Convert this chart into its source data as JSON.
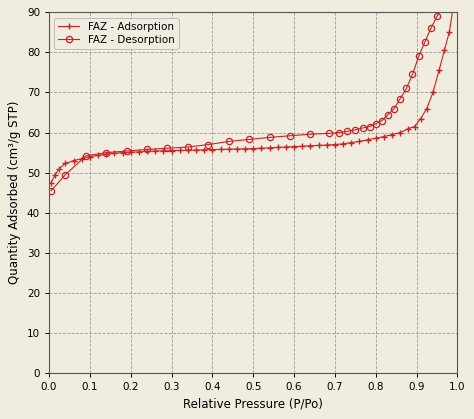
{
  "title": "",
  "xlabel": "Relative Pressure (P/Po)",
  "ylabel": "Quantity Adsorbed (cm³/g STP)",
  "xlim": [
    0.0,
    1.0
  ],
  "ylim": [
    0,
    90
  ],
  "yticks": [
    0,
    10,
    20,
    30,
    40,
    50,
    60,
    70,
    80,
    90
  ],
  "xticks": [
    0.0,
    0.1,
    0.2,
    0.3,
    0.4,
    0.5,
    0.6,
    0.7,
    0.8,
    0.9,
    1.0
  ],
  "line_color": "#cc2222",
  "background_color": "#f0ece0",
  "legend_labels": [
    "FAZ - Adsorption",
    "FAZ - Desorption"
  ],
  "adsorption_x": [
    0.005,
    0.015,
    0.025,
    0.04,
    0.06,
    0.08,
    0.1,
    0.12,
    0.14,
    0.16,
    0.18,
    0.2,
    0.22,
    0.24,
    0.26,
    0.28,
    0.3,
    0.32,
    0.34,
    0.36,
    0.38,
    0.4,
    0.42,
    0.44,
    0.46,
    0.48,
    0.5,
    0.52,
    0.54,
    0.56,
    0.58,
    0.6,
    0.62,
    0.64,
    0.66,
    0.68,
    0.7,
    0.72,
    0.74,
    0.76,
    0.78,
    0.8,
    0.82,
    0.84,
    0.86,
    0.88,
    0.895,
    0.91,
    0.925,
    0.94,
    0.955,
    0.968,
    0.98,
    0.99
  ],
  "adsorption_y": [
    47.5,
    49.5,
    51.0,
    52.3,
    53.0,
    53.5,
    54.0,
    54.3,
    54.6,
    54.8,
    55.0,
    55.1,
    55.2,
    55.3,
    55.4,
    55.45,
    55.5,
    55.55,
    55.6,
    55.65,
    55.7,
    55.75,
    55.8,
    55.85,
    55.9,
    55.95,
    56.0,
    56.1,
    56.2,
    56.3,
    56.4,
    56.5,
    56.6,
    56.7,
    56.8,
    56.9,
    57.0,
    57.2,
    57.5,
    57.8,
    58.2,
    58.6,
    59.0,
    59.5,
    60.0,
    61.0,
    61.5,
    63.5,
    66.0,
    70.0,
    75.5,
    80.5,
    85.0,
    91.5
  ],
  "desorption_x": [
    0.005,
    0.04,
    0.09,
    0.14,
    0.19,
    0.24,
    0.29,
    0.34,
    0.39,
    0.44,
    0.49,
    0.54,
    0.59,
    0.64,
    0.685,
    0.71,
    0.73,
    0.75,
    0.77,
    0.785,
    0.8,
    0.815,
    0.83,
    0.845,
    0.86,
    0.875,
    0.89,
    0.905,
    0.92,
    0.935,
    0.95,
    0.965,
    0.98,
    0.99
  ],
  "desorption_y": [
    45.5,
    49.5,
    54.2,
    55.0,
    55.4,
    55.8,
    56.1,
    56.4,
    57.0,
    57.8,
    58.3,
    58.8,
    59.2,
    59.6,
    59.8,
    60.0,
    60.3,
    60.7,
    61.2,
    61.5,
    62.2,
    63.0,
    64.5,
    66.0,
    68.5,
    71.0,
    74.5,
    79.0,
    82.5,
    86.0,
    89.0,
    91.5,
    92.5,
    93.0
  ]
}
